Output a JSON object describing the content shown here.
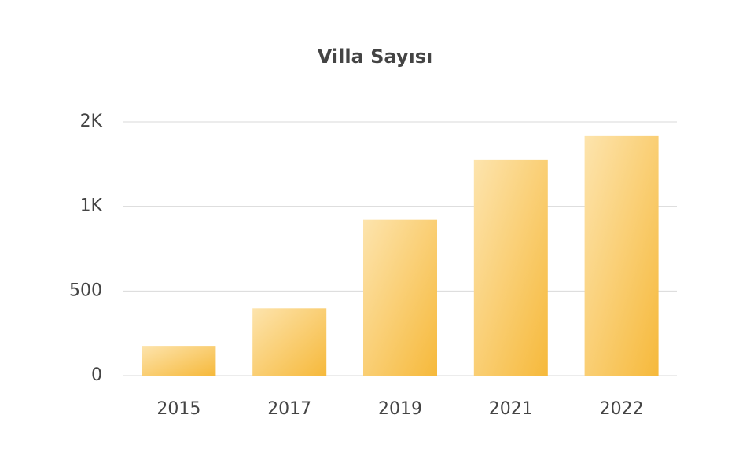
{
  "chart_data": {
    "type": "bar",
    "title": "Villa Sayısı",
    "categories": [
      "2015",
      "2017",
      "2019",
      "2021",
      "2022"
    ],
    "values": [
      176,
      398,
      921,
      1273,
      1417
    ],
    "color": "#f6b93b",
    "ylim": [
      0,
      1500
    ],
    "yticks": [
      0,
      500,
      {
        "value": 1000,
        "label": "1K"
      },
      {
        "value": 1500,
        "label": "2K"
      }
    ],
    "grid": true
  }
}
